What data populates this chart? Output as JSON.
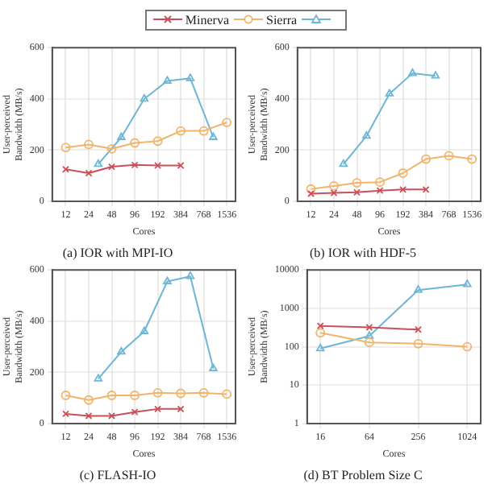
{
  "chart_data": [
    {
      "type": "line",
      "title": "(a) IOR with MPI-IO",
      "xlabel": "Cores",
      "ylabel": "User-perceived Bandwidth (MB/s)",
      "log": "x",
      "xlim": [
        8,
        2000
      ],
      "xticks": [
        12,
        24,
        48,
        96,
        192,
        384,
        768,
        1536
      ],
      "ylim": [
        0,
        600
      ],
      "yticks": [
        0,
        200,
        400,
        600
      ],
      "grid": true,
      "legend": "top",
      "series": [
        {
          "name": "Minerva",
          "color": "#c9505a",
          "marker": "cross",
          "x": [
            12,
            24,
            48,
            96,
            192,
            384
          ],
          "values": [
            125,
            110,
            135,
            142,
            140,
            140
          ]
        },
        {
          "name": "Sierra",
          "color": "#f2b46a",
          "marker": "circle",
          "x": [
            12,
            24,
            48,
            96,
            192,
            384,
            768,
            1536
          ],
          "values": [
            210,
            222,
            205,
            228,
            235,
            275,
            275,
            308
          ]
        },
        {
          "color": "#6cb6d6",
          "marker": "triangle",
          "x": [
            32,
            64,
            128,
            256,
            512,
            1024
          ],
          "values": [
            145,
            250,
            400,
            470,
            480,
            250
          ]
        }
      ]
    },
    {
      "type": "line",
      "title": "(b) IOR with HDF-5",
      "xlabel": "Cores",
      "ylabel": "User-perceived Bandwidth (MB/s)",
      "log": "x",
      "xlim": [
        8,
        2000
      ],
      "xticks": [
        12,
        24,
        48,
        96,
        192,
        384,
        768,
        1536
      ],
      "ylim": [
        0,
        600
      ],
      "yticks": [
        0,
        200,
        400,
        600
      ],
      "grid": true,
      "series": [
        {
          "color": "#c9505a",
          "marker": "cross",
          "x": [
            12,
            24,
            48,
            96,
            192,
            384
          ],
          "values": [
            30,
            33,
            35,
            42,
            46,
            46
          ]
        },
        {
          "color": "#f2b46a",
          "marker": "circle",
          "x": [
            12,
            24,
            48,
            96,
            192,
            384,
            768,
            1536
          ],
          "values": [
            48,
            60,
            72,
            75,
            110,
            165,
            178,
            165
          ]
        },
        {
          "color": "#6cb6d6",
          "marker": "triangle",
          "x": [
            32,
            64,
            128,
            256,
            512
          ],
          "values": [
            145,
            255,
            420,
            500,
            490
          ]
        }
      ]
    },
    {
      "type": "line",
      "title": "(c) FLASH-IO",
      "xlabel": "Cores",
      "ylabel": "User-perceived Bandwidth (MB/s)",
      "log": "x",
      "xlim": [
        8,
        2000
      ],
      "xticks": [
        12,
        24,
        48,
        96,
        192,
        384,
        768,
        1536
      ],
      "ylim": [
        0,
        600
      ],
      "yticks": [
        0,
        200,
        400,
        600
      ],
      "grid": true,
      "series": [
        {
          "color": "#c9505a",
          "marker": "cross",
          "x": [
            12,
            24,
            48,
            96,
            192,
            384
          ],
          "values": [
            38,
            30,
            30,
            45,
            57,
            57
          ]
        },
        {
          "color": "#f2b46a",
          "marker": "circle",
          "x": [
            12,
            24,
            48,
            96,
            192,
            384,
            768,
            1536
          ],
          "values": [
            110,
            92,
            110,
            110,
            120,
            118,
            120,
            115
          ]
        },
        {
          "color": "#6cb6d6",
          "marker": "triangle",
          "x": [
            32,
            64,
            128,
            256,
            512,
            1024
          ],
          "values": [
            175,
            280,
            360,
            555,
            575,
            215
          ]
        }
      ]
    },
    {
      "type": "line",
      "title": "(d) BT Problem Size C",
      "xlabel": "Cores",
      "ylabel": "User-perceived Bandwidth (MB/s)",
      "log": "xy",
      "xlim": [
        11,
        1500
      ],
      "xticks": [
        16,
        64,
        256,
        1024
      ],
      "ylim": [
        1,
        10000
      ],
      "yticks": [
        1,
        10,
        100,
        1000,
        10000
      ],
      "grid": true,
      "series": [
        {
          "color": "#c9505a",
          "marker": "cross",
          "x": [
            16,
            64,
            256
          ],
          "values": [
            350,
            320,
            280
          ]
        },
        {
          "color": "#f2b46a",
          "marker": "circle",
          "x": [
            16,
            64,
            256,
            1024
          ],
          "values": [
            230,
            130,
            120,
            100
          ]
        },
        {
          "color": "#6cb6d6",
          "marker": "triangle",
          "x": [
            16,
            64,
            256,
            1024
          ],
          "values": [
            90,
            190,
            3000,
            4200
          ]
        }
      ]
    }
  ]
}
